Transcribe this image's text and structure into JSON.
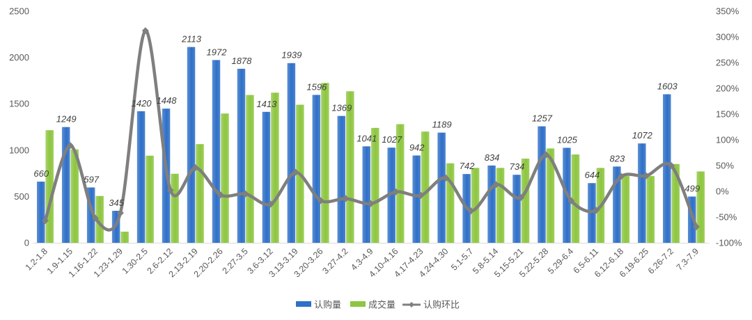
{
  "chart_data": {
    "type": "bar",
    "categories": [
      "1.2-1.8",
      "1.9-1.15",
      "1.16-1.22",
      "1.23-1.29",
      "1.30-2.5",
      "2.6-2.12",
      "2.13-2.19",
      "2.20-2.26",
      "2.27-3.5",
      "3.6-3.12",
      "3.13-3.19",
      "3.20-3.26",
      "3.27-4.2",
      "4.3-4.9",
      "4.10-4.16",
      "4.17-4.23",
      "4.24-4.30",
      "5.1-5.7",
      "5.8-5.14",
      "5.15-5.21",
      "5.22-5.28",
      "5.29-6.4",
      "6.5-6.11",
      "6.12-6.18",
      "6.19-6.25",
      "6.26-7.2",
      "7.3-7.9"
    ],
    "series": [
      {
        "name": "认购量",
        "kind": "bar",
        "axis": "left",
        "color": "#2E6FC7",
        "show_labels": true,
        "values": [
          660,
          1249,
          597,
          345,
          1420,
          1448,
          2113,
          1972,
          1878,
          1413,
          1939,
          1596,
          1369,
          1041,
          1027,
          942,
          1189,
          742,
          834,
          734,
          1257,
          1025,
          644,
          823,
          1072,
          1603,
          499
        ]
      },
      {
        "name": "成交量",
        "kind": "bar",
        "axis": "left",
        "color": "#8DC63F",
        "show_labels": false,
        "values": [
          1215,
          1008,
          505,
          120,
          940,
          745,
          1065,
          1395,
          1595,
          1620,
          1490,
          1725,
          1635,
          1240,
          1280,
          1200,
          858,
          808,
          808,
          908,
          1018,
          953,
          808,
          720,
          720,
          850,
          770
        ]
      },
      {
        "name": "认购环比",
        "kind": "line",
        "axis": "right",
        "color": "#7F7F7F",
        "unit": "%",
        "show_labels": false,
        "values": [
          -57,
          89,
          -52,
          -42,
          312,
          2,
          46,
          -7,
          -5,
          -25,
          37,
          -18,
          -14,
          -24,
          -1,
          -8,
          26,
          -38,
          13,
          -12,
          71,
          -18,
          -37,
          29,
          30,
          50,
          -69
        ]
      }
    ],
    "ylim": [
      0,
      2500
    ],
    "yticks": [
      "0",
      "500",
      "1000",
      "1500",
      "2000",
      "2500"
    ],
    "y2lim": [
      -100,
      350
    ],
    "y2ticks": [
      "-100%",
      "-50%",
      "0%",
      "50%",
      "100%",
      "150%",
      "200%",
      "250%",
      "300%",
      "350%"
    ],
    "grid": false,
    "legend_position": "bottom"
  }
}
